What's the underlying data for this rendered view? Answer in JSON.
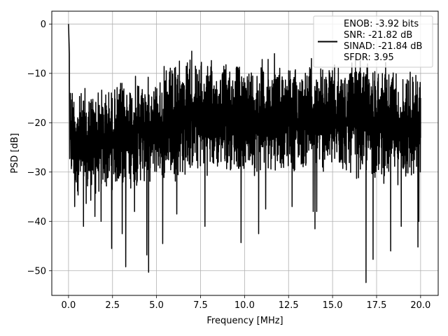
{
  "chart_data": {
    "type": "line",
    "xlabel": "Frequency [MHz]",
    "ylabel": "PSD [dB]",
    "xlim": [
      -0.95,
      21.0
    ],
    "ylim": [
      -55.0,
      2.6
    ],
    "xticks": [
      0.0,
      2.5,
      5.0,
      7.5,
      10.0,
      12.5,
      15.0,
      17.5,
      20.0
    ],
    "xtick_labels": [
      "0.0",
      "2.5",
      "5.0",
      "7.5",
      "10.0",
      "12.5",
      "15.0",
      "17.5",
      "20.0"
    ],
    "yticks": [
      0,
      -10,
      -20,
      -30,
      -40,
      -50
    ],
    "ytick_labels": [
      "0",
      "−10",
      "−20",
      "−30",
      "−40",
      "−50"
    ],
    "grid": true,
    "legend_position": "top-right",
    "legend_entries": [
      "ENOB: -3.92 bits",
      "SNR: -21.82 dB",
      "SINAD: -21.84 dB",
      "SFDR: 3.95"
    ],
    "series": [
      {
        "color": "#000000",
        "band": {
          "x": [
            0.0,
            0.5,
            1.0,
            1.5,
            2.0,
            2.5,
            3.0,
            3.5,
            4.0,
            4.5,
            5.0,
            5.5,
            6.0,
            6.5,
            7.0,
            7.5,
            8.0,
            8.5,
            9.0,
            9.5,
            10.0,
            10.5,
            11.0,
            11.5,
            12.0,
            12.5,
            13.0,
            13.5,
            14.0,
            14.5,
            15.0,
            15.5,
            16.0,
            16.5,
            17.0,
            17.5,
            18.0,
            18.5,
            19.0,
            19.5,
            20.0
          ],
          "upper": [
            -8,
            -14,
            -12,
            -12,
            -12,
            -12,
            -11,
            -10,
            -10,
            -10,
            -10,
            -8,
            -8,
            -7,
            -6,
            -7,
            -7,
            -7,
            -7,
            -7,
            -7,
            -7,
            -6,
            -7,
            -7,
            -7,
            -8,
            -8,
            -8,
            -8,
            -8,
            -8,
            -8,
            -7,
            -7,
            -7,
            -7,
            -7,
            -8,
            -8,
            -9
          ],
          "lower": [
            -34,
            -35,
            -37,
            -36,
            -35,
            -34,
            -34,
            -34,
            -33,
            -33,
            -32,
            -32,
            -32,
            -32,
            -31,
            -31,
            -31,
            -31,
            -30,
            -30,
            -31,
            -31,
            -31,
            -30,
            -30,
            -30,
            -30,
            -30,
            -30,
            -31,
            -31,
            -31,
            -31,
            -32,
            -32,
            -32,
            -33,
            -33,
            -33,
            -34,
            -34
          ]
        },
        "peaks": [
          {
            "x": 0.0,
            "y": 0.0
          },
          {
            "x": 0.05,
            "y": -6.0
          },
          {
            "x": 6.3,
            "y": -7.5
          },
          {
            "x": 7.0,
            "y": -5.5
          },
          {
            "x": 11.7,
            "y": -6.0
          },
          {
            "x": 13.8,
            "y": -7.0
          },
          {
            "x": 16.3,
            "y": -6.5
          }
        ],
        "dips": [
          {
            "x": 0.35,
            "y": -37.0
          },
          {
            "x": 0.85,
            "y": -41.0
          },
          {
            "x": 1.5,
            "y": -39.0
          },
          {
            "x": 1.85,
            "y": -40.0
          },
          {
            "x": 2.45,
            "y": -45.5
          },
          {
            "x": 3.05,
            "y": -42.5
          },
          {
            "x": 3.25,
            "y": -49.2
          },
          {
            "x": 3.75,
            "y": -38.0
          },
          {
            "x": 4.45,
            "y": -46.8
          },
          {
            "x": 4.55,
            "y": -50.3
          },
          {
            "x": 5.35,
            "y": -44.5
          },
          {
            "x": 6.15,
            "y": -38.5
          },
          {
            "x": 7.75,
            "y": -41.0
          },
          {
            "x": 9.8,
            "y": -44.3
          },
          {
            "x": 10.8,
            "y": -42.5
          },
          {
            "x": 11.2,
            "y": -37.5
          },
          {
            "x": 12.7,
            "y": -37.0
          },
          {
            "x": 13.9,
            "y": -38.0
          },
          {
            "x": 14.0,
            "y": -41.5
          },
          {
            "x": 14.1,
            "y": -38.0
          },
          {
            "x": 16.9,
            "y": -52.4
          },
          {
            "x": 17.3,
            "y": -47.7
          },
          {
            "x": 18.3,
            "y": -46.0
          },
          {
            "x": 18.9,
            "y": -41.0
          },
          {
            "x": 19.85,
            "y": -45.2
          },
          {
            "x": 19.9,
            "y": -40.0
          }
        ],
        "end": {
          "x": 20.0,
          "y": -15.0
        }
      }
    ]
  }
}
